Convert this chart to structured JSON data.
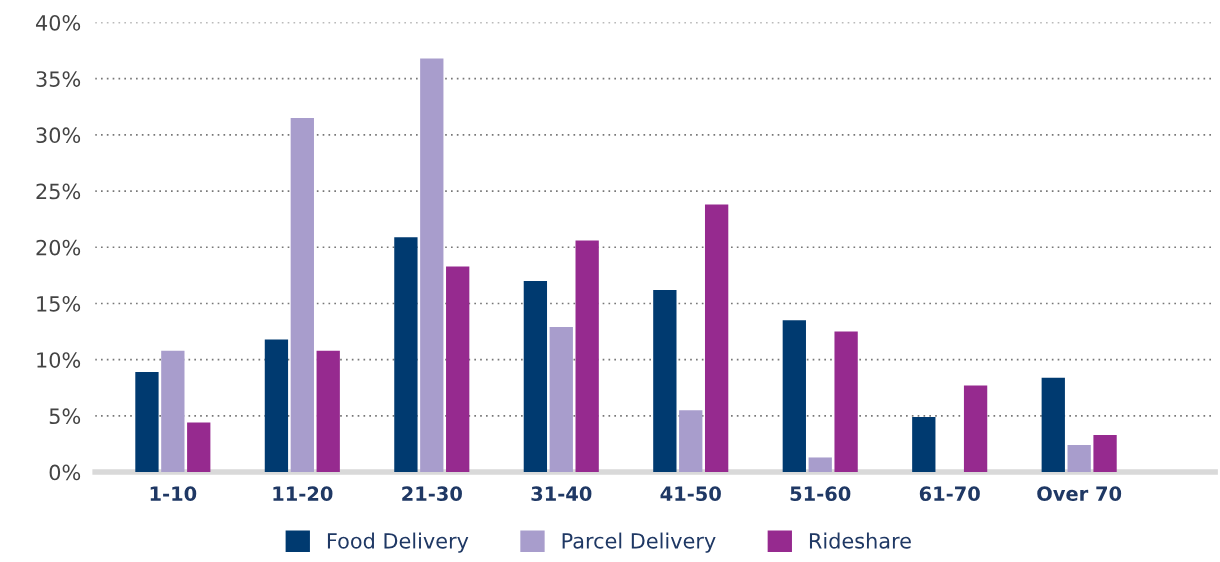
{
  "chart_data": {
    "type": "bar",
    "categories": [
      "1-10",
      "11-20",
      "21-30",
      "31-40",
      "41-50",
      "51-60",
      "61-70",
      "Over 70"
    ],
    "series": [
      {
        "name": "Food Delivery",
        "color": "#003a70",
        "values": [
          8.9,
          11.8,
          20.9,
          17.0,
          16.2,
          13.5,
          4.9,
          8.4
        ]
      },
      {
        "name": "Parcel Delivery",
        "color": "#a89dcc",
        "values": [
          10.8,
          31.5,
          36.8,
          12.9,
          5.5,
          1.3,
          0,
          2.4
        ]
      },
      {
        "name": "Rideshare",
        "color": "#962a8f",
        "values": [
          4.4,
          10.8,
          18.3,
          20.6,
          23.8,
          12.5,
          7.7,
          3.3
        ]
      }
    ],
    "ylim": [
      0,
      40
    ],
    "yticks": [
      {
        "value": 0,
        "label": "0%"
      },
      {
        "value": 5,
        "label": "5%"
      },
      {
        "value": 10,
        "label": "10%"
      },
      {
        "value": 15,
        "label": "15%"
      },
      {
        "value": 20,
        "label": "20%"
      },
      {
        "value": 25,
        "label": "25%"
      },
      {
        "value": 30,
        "label": "30%"
      },
      {
        "value": 35,
        "label": "35%"
      },
      {
        "value": 40,
        "label": "40%"
      }
    ],
    "grid": "y",
    "legend": "bottom"
  }
}
